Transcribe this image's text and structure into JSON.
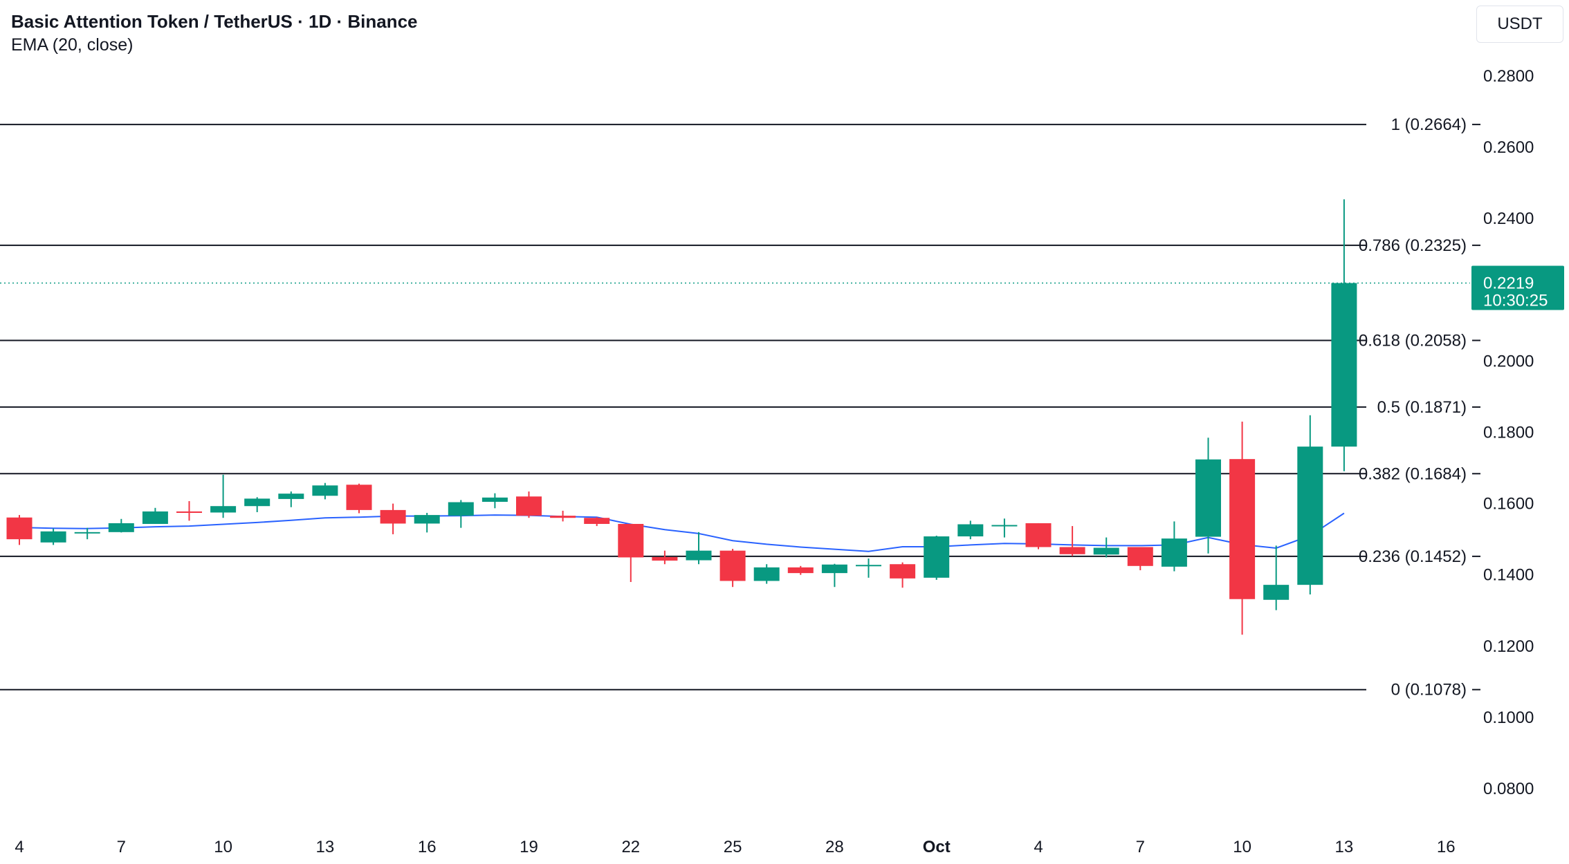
{
  "header": {
    "title": "Basic Attention Token / TetherUS · 1D · Binance",
    "indicator": "EMA (20, close)"
  },
  "currency_button": "USDT",
  "colors": {
    "up": "#089981",
    "down": "#f23645",
    "ema": "#2962ff",
    "fib_line": "#131722",
    "last_price_line": "#089981"
  },
  "last_price": {
    "value": "0.2219",
    "countdown": "10:30:25"
  },
  "chart_data": {
    "type": "candlestick",
    "title": "Basic Attention Token / TetherUS · 1D · Binance",
    "ylim": [
      0.07,
      0.29
    ],
    "y_ticks": [
      "0.2800",
      "0.2600",
      "0.2400",
      "0.2200",
      "0.2000",
      "0.1800",
      "0.1600",
      "0.1400",
      "0.1200",
      "0.1000",
      "0.0800"
    ],
    "x_ticks": [
      {
        "label": "4",
        "day": 0
      },
      {
        "label": "7",
        "day": 3
      },
      {
        "label": "10",
        "day": 6
      },
      {
        "label": "13",
        "day": 9
      },
      {
        "label": "16",
        "day": 12
      },
      {
        "label": "19",
        "day": 15
      },
      {
        "label": "22",
        "day": 18
      },
      {
        "label": "25",
        "day": 21
      },
      {
        "label": "28",
        "day": 24
      },
      {
        "label": "Oct",
        "day": 27,
        "bold": true
      },
      {
        "label": "4",
        "day": 30
      },
      {
        "label": "7",
        "day": 33
      },
      {
        "label": "10",
        "day": 36
      },
      {
        "label": "13",
        "day": 39
      },
      {
        "label": "16",
        "day": 42
      }
    ],
    "fib_levels": [
      {
        "label": "1 (0.2664)",
        "value": 0.2664
      },
      {
        "label": "0.786 (0.2325)",
        "value": 0.2325
      },
      {
        "label": "0.618 (0.2058)",
        "value": 0.2058
      },
      {
        "label": "0.5 (0.1871)",
        "value": 0.1871
      },
      {
        "label": "0.382 (0.1684)",
        "value": 0.1684
      },
      {
        "label": "0.236 (0.1452)",
        "value": 0.1452
      },
      {
        "label": "0 (0.1078)",
        "value": 0.1078
      }
    ],
    "candles": [
      {
        "open": 0.1561,
        "high": 0.1568,
        "low": 0.1484,
        "close": 0.15
      },
      {
        "open": 0.1491,
        "high": 0.153,
        "low": 0.1484,
        "close": 0.1522
      },
      {
        "open": 0.152,
        "high": 0.1532,
        "low": 0.15,
        "close": 0.152
      },
      {
        "open": 0.152,
        "high": 0.1557,
        "low": 0.1519,
        "close": 0.1545
      },
      {
        "open": 0.1543,
        "high": 0.1588,
        "low": 0.1543,
        "close": 0.1578
      },
      {
        "open": 0.1578,
        "high": 0.1607,
        "low": 0.1552,
        "close": 0.1574
      },
      {
        "open": 0.1575,
        "high": 0.1681,
        "low": 0.156,
        "close": 0.1593
      },
      {
        "open": 0.1593,
        "high": 0.1618,
        "low": 0.1576,
        "close": 0.1614
      },
      {
        "open": 0.1613,
        "high": 0.1634,
        "low": 0.159,
        "close": 0.1628
      },
      {
        "open": 0.1622,
        "high": 0.1658,
        "low": 0.1612,
        "close": 0.1651
      },
      {
        "open": 0.1653,
        "high": 0.1656,
        "low": 0.1573,
        "close": 0.1582
      },
      {
        "open": 0.1582,
        "high": 0.16,
        "low": 0.1514,
        "close": 0.1544
      },
      {
        "open": 0.1544,
        "high": 0.1574,
        "low": 0.1519,
        "close": 0.1568
      },
      {
        "open": 0.1566,
        "high": 0.161,
        "low": 0.1532,
        "close": 0.1604
      },
      {
        "open": 0.1605,
        "high": 0.1629,
        "low": 0.1587,
        "close": 0.1617
      },
      {
        "open": 0.162,
        "high": 0.1634,
        "low": 0.156,
        "close": 0.1566
      },
      {
        "open": 0.1566,
        "high": 0.158,
        "low": 0.155,
        "close": 0.156
      },
      {
        "open": 0.156,
        "high": 0.1562,
        "low": 0.1537,
        "close": 0.1543
      },
      {
        "open": 0.1543,
        "high": 0.1543,
        "low": 0.138,
        "close": 0.1449
      },
      {
        "open": 0.145,
        "high": 0.1468,
        "low": 0.143,
        "close": 0.144
      },
      {
        "open": 0.1441,
        "high": 0.152,
        "low": 0.143,
        "close": 0.1468
      },
      {
        "open": 0.1468,
        "high": 0.1473,
        "low": 0.1366,
        "close": 0.1383
      },
      {
        "open": 0.1383,
        "high": 0.143,
        "low": 0.1375,
        "close": 0.1421
      },
      {
        "open": 0.1421,
        "high": 0.1425,
        "low": 0.14,
        "close": 0.1405
      },
      {
        "open": 0.1405,
        "high": 0.1431,
        "low": 0.1366,
        "close": 0.1429
      },
      {
        "open": 0.1428,
        "high": 0.1446,
        "low": 0.1392,
        "close": 0.1428
      },
      {
        "open": 0.143,
        "high": 0.1435,
        "low": 0.1364,
        "close": 0.139
      },
      {
        "open": 0.1392,
        "high": 0.151,
        "low": 0.1386,
        "close": 0.1508
      },
      {
        "open": 0.1508,
        "high": 0.1552,
        "low": 0.15,
        "close": 0.1542
      },
      {
        "open": 0.154,
        "high": 0.1558,
        "low": 0.1505,
        "close": 0.154
      },
      {
        "open": 0.1545,
        "high": 0.1545,
        "low": 0.1472,
        "close": 0.1478
      },
      {
        "open": 0.1478,
        "high": 0.1537,
        "low": 0.1453,
        "close": 0.1458
      },
      {
        "open": 0.1457,
        "high": 0.1505,
        "low": 0.1449,
        "close": 0.1476
      },
      {
        "open": 0.1478,
        "high": 0.1478,
        "low": 0.1413,
        "close": 0.1425
      },
      {
        "open": 0.1423,
        "high": 0.155,
        "low": 0.141,
        "close": 0.1502
      },
      {
        "open": 0.1507,
        "high": 0.1785,
        "low": 0.146,
        "close": 0.1724
      },
      {
        "open": 0.1725,
        "high": 0.183,
        "low": 0.1232,
        "close": 0.1332
      },
      {
        "open": 0.133,
        "high": 0.1482,
        "low": 0.1301,
        "close": 0.1372
      },
      {
        "open": 0.1372,
        "high": 0.1848,
        "low": 0.1345,
        "close": 0.176
      },
      {
        "open": 0.176,
        "high": 0.2454,
        "low": 0.1691,
        "close": 0.2219
      }
    ],
    "ema": [
      0.1533,
      0.1531,
      0.153,
      0.1532,
      0.1535,
      0.1537,
      0.1542,
      0.1547,
      0.1553,
      0.156,
      0.1562,
      0.1565,
      0.1565,
      0.1566,
      0.1568,
      0.1567,
      0.1564,
      0.1562,
      0.1542,
      0.1527,
      0.1516,
      0.1496,
      0.1486,
      0.1478,
      0.1472,
      0.1466,
      0.1479,
      0.1479,
      0.1484,
      0.1488,
      0.1487,
      0.1484,
      0.1482,
      0.1482,
      0.1484,
      0.1505,
      0.1485,
      0.1475,
      0.151,
      0.1573
    ]
  }
}
